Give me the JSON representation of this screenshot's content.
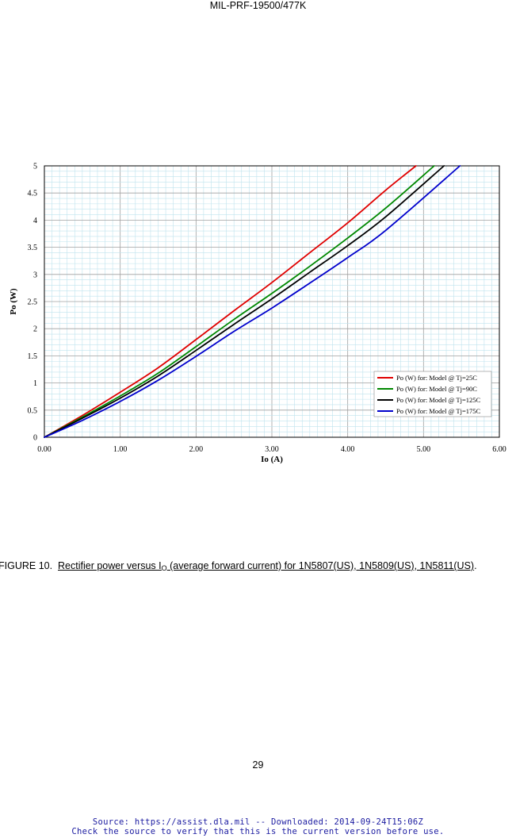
{
  "document": {
    "header": "MIL-PRF-19500/477K",
    "page_number": "29",
    "source_line1": "Source: https://assist.dla.mil -- Downloaded: 2014-09-24T15:06Z",
    "source_line2": "Check the source to verify that this is the current version before use."
  },
  "caption": {
    "prefix": "FIGURE 10.",
    "text_a": "Rectifier power versus I",
    "text_sub": "O",
    "text_b": " (average forward current) for 1N5807(US), 1N5809(US), 1N5811(US)",
    "suffix": "."
  },
  "chart_data": {
    "type": "line",
    "title": "",
    "xlabel": "Io (A)",
    "ylabel": "Po (W)",
    "xlim": [
      0,
      6
    ],
    "ylim": [
      0,
      5
    ],
    "x_ticks": [
      "0.00",
      "1.00",
      "2.00",
      "3.00",
      "4.00",
      "5.00",
      "6.00"
    ],
    "y_ticks": [
      "0",
      "0.5",
      "1",
      "1.5",
      "2",
      "2.5",
      "3",
      "3.5",
      "4",
      "4.5",
      "5"
    ],
    "x_minor_step": 0.1,
    "y_minor_step": 0.1,
    "grid": true,
    "legend_position": "bottom-right",
    "series": [
      {
        "name": "Po (W) for: Model @ Tj=25C",
        "color": "#e00000",
        "x": [
          0,
          0.5,
          1.0,
          1.5,
          2.0,
          2.5,
          3.0,
          3.5,
          4.0,
          4.5,
          4.9
        ],
        "y": [
          0,
          0.4,
          0.83,
          1.28,
          1.8,
          2.33,
          2.85,
          3.4,
          3.95,
          4.55,
          5.0
        ]
      },
      {
        "name": "Po (W) for: Model @ Tj=90C",
        "color": "#008800",
        "x": [
          0,
          0.5,
          1.0,
          1.5,
          2.0,
          2.5,
          3.0,
          3.5,
          4.0,
          4.5,
          5.14
        ],
        "y": [
          0,
          0.37,
          0.76,
          1.18,
          1.67,
          2.17,
          2.65,
          3.15,
          3.67,
          4.22,
          5.0
        ]
      },
      {
        "name": "Po (W) for: Model @ Tj=125C",
        "color": "#000000",
        "x": [
          0,
          0.5,
          1.0,
          1.5,
          2.0,
          2.5,
          3.0,
          3.5,
          4.0,
          4.5,
          5.27
        ],
        "y": [
          0,
          0.35,
          0.72,
          1.13,
          1.6,
          2.08,
          2.55,
          3.04,
          3.53,
          4.06,
          5.0
        ]
      },
      {
        "name": "Po (W) for: Model @ Tj=175C",
        "color": "#0000cc",
        "x": [
          0,
          0.5,
          1.0,
          1.5,
          2.0,
          2.5,
          3.0,
          3.5,
          4.0,
          4.5,
          5.48
        ],
        "y": [
          0,
          0.31,
          0.66,
          1.05,
          1.49,
          1.95,
          2.38,
          2.84,
          3.31,
          3.81,
          5.0
        ]
      }
    ]
  }
}
